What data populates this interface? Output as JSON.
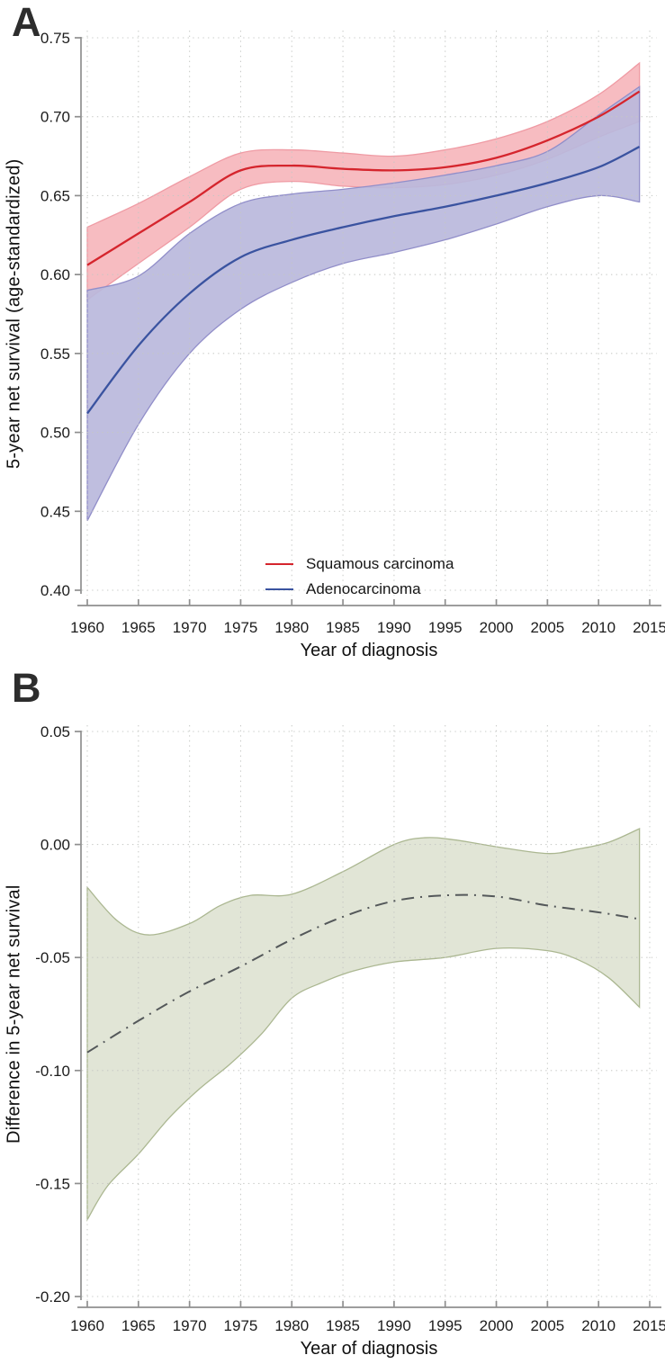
{
  "page": {
    "background": "#ffffff"
  },
  "figure": {
    "panels": [
      {
        "label": "A"
      },
      {
        "label": "B"
      }
    ]
  },
  "colors": {
    "squamous_line": "#d5252d",
    "squamous_band_fill": "#f6b6bc",
    "squamous_band_edge": "#ef9ba4",
    "adeno_line": "#3a53a0",
    "adeno_band_fill": "#bab8dc",
    "adeno_band_edge": "#918ec9",
    "difference_line": "#54585a",
    "difference_band_fill": "#dee3d2",
    "difference_band_edge": "#abb791",
    "grid": "#c5c7c4",
    "axis": "#8f8f8f",
    "tick_text": "#1c1c1c"
  },
  "chart_data": [
    {
      "type": "line",
      "panel": "A",
      "xlabel": "Year of diagnosis",
      "ylabel": "5-year net survival (age-standardized)",
      "xlim": [
        1960,
        2015
      ],
      "ylim": [
        0.4,
        0.75
      ],
      "grid": "dotted",
      "legend_position": "inside-bottom-center",
      "x_ticks": [
        1960,
        1965,
        1970,
        1975,
        1980,
        1985,
        1990,
        1995,
        2000,
        2005,
        2010,
        2015
      ],
      "x_tick_labels": [
        "1960",
        "1965",
        "1970",
        "1975",
        "1980",
        "1985",
        "1990",
        "1995",
        "2000",
        "2005",
        "2010",
        "2015"
      ],
      "y_ticks": [
        0.75,
        0.7,
        0.65,
        0.6,
        0.55,
        0.5,
        0.45,
        0.4
      ],
      "y_tick_labels": [
        "0.75",
        "0.70",
        "0.65",
        "0.60",
        "0.55",
        "0.50",
        "0.45",
        "0.40"
      ],
      "series": [
        {
          "name": "Squamous carcinoma",
          "line_style": "solid",
          "line_color": "#d5252d",
          "band_fill": "#f6b6bc",
          "band_edge": "#ef9ba4",
          "x": [
            1960,
            1965,
            1970,
            1975,
            1980,
            1985,
            1990,
            1995,
            2000,
            2005,
            2010,
            2014
          ],
          "y": [
            0.606,
            0.626,
            0.646,
            0.666,
            0.669,
            0.667,
            0.666,
            0.668,
            0.674,
            0.685,
            0.7,
            0.716
          ],
          "upper": [
            0.63,
            0.645,
            0.662,
            0.677,
            0.679,
            0.677,
            0.675,
            0.679,
            0.686,
            0.697,
            0.714,
            0.734
          ],
          "lower": [
            0.584,
            0.607,
            0.63,
            0.654,
            0.659,
            0.656,
            0.655,
            0.657,
            0.663,
            0.673,
            0.687,
            0.697
          ]
        },
        {
          "name": "Adenocarcinoma",
          "line_style": "solid",
          "line_color": "#3a53a0",
          "band_fill": "#bab8dc",
          "band_edge": "#918ec9",
          "x": [
            1960,
            1965,
            1970,
            1975,
            1980,
            1985,
            1990,
            1995,
            2000,
            2005,
            2010,
            2014
          ],
          "y": [
            0.512,
            0.555,
            0.588,
            0.611,
            0.622,
            0.63,
            0.637,
            0.643,
            0.65,
            0.658,
            0.668,
            0.681
          ],
          "upper": [
            0.59,
            0.599,
            0.626,
            0.645,
            0.651,
            0.654,
            0.658,
            0.663,
            0.669,
            0.678,
            0.701,
            0.719
          ],
          "lower": [
            0.444,
            0.505,
            0.55,
            0.578,
            0.595,
            0.607,
            0.614,
            0.622,
            0.632,
            0.643,
            0.65,
            0.646
          ]
        }
      ]
    },
    {
      "type": "line",
      "panel": "B",
      "xlabel": "Year of diagnosis",
      "ylabel": "Difference in 5-year net survival",
      "xlim": [
        1960,
        2015
      ],
      "ylim": [
        -0.2,
        0.05
      ],
      "grid": "dotted",
      "x_ticks": [
        1960,
        1965,
        1970,
        1975,
        1980,
        1985,
        1990,
        1995,
        2000,
        2005,
        2010,
        2015
      ],
      "x_tick_labels": [
        "1960",
        "1965",
        "1970",
        "1975",
        "1980",
        "1985",
        "1990",
        "1995",
        "2000",
        "2005",
        "2010",
        "2015"
      ],
      "y_ticks": [
        0.05,
        0.0,
        -0.05,
        -0.1,
        -0.15,
        -0.2
      ],
      "y_tick_labels": [
        "0.05",
        "0.00",
        "-0.05",
        "-0.10",
        "-0.15",
        "-0.20"
      ],
      "series": [
        {
          "name": "Difference in 5-year net survival",
          "line_style": "dash-dot",
          "line_color": "#54585a",
          "band_fill": "#dee3d2",
          "band_edge": "#abb791",
          "x": [
            1960,
            1965,
            1970,
            1975,
            1980,
            1985,
            1990,
            1995,
            2000,
            2005,
            2010,
            2014
          ],
          "y": [
            -0.092,
            -0.078,
            -0.065,
            -0.054,
            -0.042,
            -0.032,
            -0.025,
            -0.0225,
            -0.023,
            -0.027,
            -0.03,
            -0.033
          ],
          "upper_x": [
            1960,
            1963,
            1966,
            1970,
            1973,
            1976,
            1980,
            1985,
            1990,
            1993,
            1996,
            2000,
            2005,
            2008,
            2011,
            2014
          ],
          "upper": [
            -0.019,
            -0.034,
            -0.04,
            -0.035,
            -0.027,
            -0.0225,
            -0.022,
            -0.012,
            0.0,
            0.003,
            0.002,
            -0.001,
            -0.004,
            -0.002,
            0.001,
            0.007
          ],
          "lower_x": [
            1960,
            1962,
            1965,
            1968,
            1971,
            1974,
            1977,
            1980,
            1983,
            1986,
            1990,
            1995,
            2000,
            2005,
            2008,
            2011,
            2014
          ],
          "lower": [
            -0.166,
            -0.151,
            -0.137,
            -0.121,
            -0.108,
            -0.097,
            -0.084,
            -0.068,
            -0.061,
            -0.056,
            -0.052,
            -0.05,
            -0.046,
            -0.047,
            -0.051,
            -0.059,
            -0.072
          ]
        }
      ]
    }
  ]
}
